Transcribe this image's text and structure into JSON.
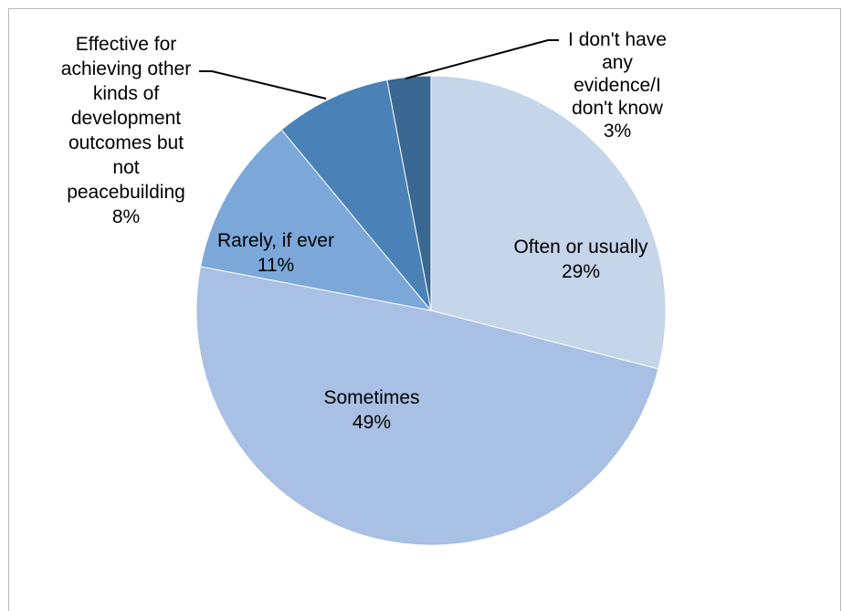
{
  "chart_data": {
    "type": "pie",
    "title": "",
    "start_angle_deg": 0,
    "direction": "clockwise",
    "slices": [
      {
        "label_lines": [
          "Often or usually",
          "29%"
        ],
        "value": 29,
        "color": "#c5d5ea"
      },
      {
        "label_lines": [
          "Sometimes",
          "49%"
        ],
        "value": 49,
        "color": "#a7c0e3"
      },
      {
        "label_lines": [
          "Rarely, if ever",
          "11%"
        ],
        "value": 11,
        "color": "#7ba7d9"
      },
      {
        "label_lines": [
          "Effective for",
          "achieving other",
          "kinds of",
          "development",
          "outcomes but",
          "not",
          "peacebuilding",
          "8%"
        ],
        "value": 8,
        "color": "#4a82b7"
      },
      {
        "label_lines": [
          "I don't have",
          "any",
          "evidence/I",
          "don't know",
          "3%"
        ],
        "value": 3,
        "color": "#3a6892"
      }
    ],
    "legend": "none",
    "data_labels": "category name and percentage"
  }
}
